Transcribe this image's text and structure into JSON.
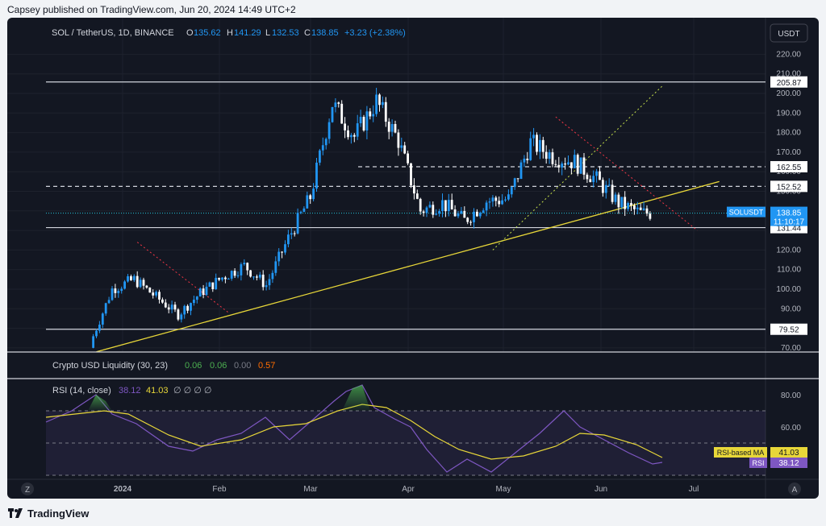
{
  "publish_line": "Capsey published on TradingView.com, Jun 20, 2024 14:49 UTC+2",
  "footer_brand": "TradingView",
  "colors": {
    "background": "#131722",
    "up": "#2196f3",
    "down": "#ffffff",
    "trendline": "#e8d739",
    "rsi": "#7e57c2",
    "rsi_ma": "#e8d739",
    "cyan": "#26c6da"
  },
  "header": {
    "symbol": "SOL / TetherUS, 1D, BINANCE",
    "o_label": "O",
    "o": "135.62",
    "h_label": "H",
    "h": "141.29",
    "l_label": "L",
    "l": "132.53",
    "c_label": "C",
    "c": "138.85",
    "change": "+3.23 (+2.38%)",
    "currency_button": "USDT"
  },
  "indicator_liquidity": {
    "label": "Crypto USD Liquidity (30, 23)",
    "v1": "0.06",
    "v2": "0.06",
    "v3": "0.00",
    "v4": "0.57"
  },
  "indicator_rsi": {
    "label": "RSI (14, close)",
    "v1": "38.12",
    "v2": "41.03",
    "empties": "∅ ∅ ∅ ∅",
    "ma_tag": "RSI-based MA",
    "ma_value": "41.03",
    "rsi_tag": "RSI",
    "rsi_value": "38.12",
    "ticks": [
      "80.00",
      "60.00"
    ]
  },
  "price_tags": {
    "r205": "205.87",
    "r162": "162.55",
    "r152": "152.52",
    "r131": "131.44",
    "r79": "79.52",
    "sym": "SOLUSDT",
    "last": "138.85",
    "countdown": "11:10:17"
  },
  "price_ticks": [
    "220.00",
    "210.00",
    "200.00",
    "190.00",
    "180.00",
    "170.00",
    "160.00",
    "150.00",
    "140.00",
    "130.00",
    "120.00",
    "110.00",
    "100.00",
    "90.00",
    "80.00",
    "70.00"
  ],
  "time_axis": {
    "labels": [
      "2024",
      "Feb",
      "Mar",
      "Apr",
      "May",
      "Jun",
      "Jul"
    ],
    "z_button": "Z",
    "a_button": "A"
  },
  "chart_data": {
    "type": "candlestick",
    "symbol": "SOL / TetherUS",
    "interval": "1D",
    "exchange": "BINANCE",
    "ylim": [
      65,
      225
    ],
    "horizontal_levels": [
      205.87,
      162.55,
      152.52,
      131.44,
      79.52
    ],
    "last_close": 138.85,
    "trendline": {
      "from": [
        "2023-12-27",
        68
      ],
      "to": [
        "2024-07-12",
        155
      ]
    },
    "weekly_closes": [
      {
        "date": "2023-12-25",
        "close": 72
      },
      {
        "date": "2024-01-01",
        "close": 100
      },
      {
        "date": "2024-01-08",
        "close": 105
      },
      {
        "date": "2024-01-15",
        "close": 96
      },
      {
        "date": "2024-01-22",
        "close": 87
      },
      {
        "date": "2024-01-29",
        "close": 98
      },
      {
        "date": "2024-02-05",
        "close": 106
      },
      {
        "date": "2024-02-12",
        "close": 112
      },
      {
        "date": "2024-02-19",
        "close": 102
      },
      {
        "date": "2024-02-26",
        "close": 126
      },
      {
        "date": "2024-03-04",
        "close": 147
      },
      {
        "date": "2024-03-11",
        "close": 195
      },
      {
        "date": "2024-03-18",
        "close": 178
      },
      {
        "date": "2024-03-25",
        "close": 196
      },
      {
        "date": "2024-04-01",
        "close": 176
      },
      {
        "date": "2024-04-08",
        "close": 140
      },
      {
        "date": "2024-04-15",
        "close": 144
      },
      {
        "date": "2024-04-22",
        "close": 135
      },
      {
        "date": "2024-04-29",
        "close": 145
      },
      {
        "date": "2024-05-06",
        "close": 146
      },
      {
        "date": "2024-05-13",
        "close": 175
      },
      {
        "date": "2024-05-20",
        "close": 168
      },
      {
        "date": "2024-05-27",
        "close": 165
      },
      {
        "date": "2024-06-03",
        "close": 156
      },
      {
        "date": "2024-06-10",
        "close": 144
      },
      {
        "date": "2024-06-17",
        "close": 138.85
      }
    ],
    "rsi": {
      "ylim": [
        20,
        90
      ],
      "bands": [
        30,
        50,
        70
      ],
      "last": 38.12,
      "ma_last": 41.03
    }
  }
}
